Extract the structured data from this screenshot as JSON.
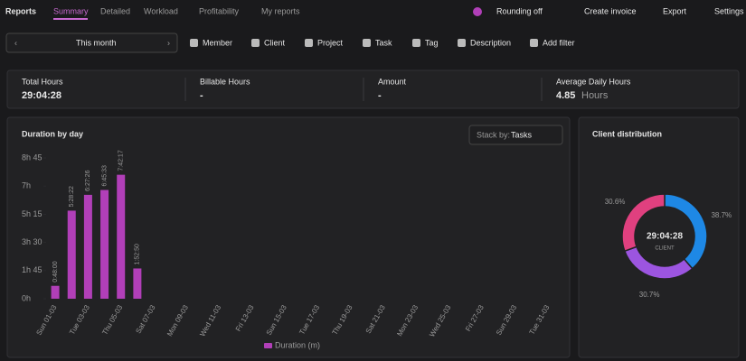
{
  "header": {
    "title": "Reports",
    "tabs": [
      "Summary",
      "Detailed",
      "Workload",
      "Profitability",
      "My reports"
    ],
    "actions": [
      "Rounding off",
      "Create invoice",
      "Export",
      "Settings"
    ]
  },
  "filters": {
    "range": "This month",
    "items": [
      "Member",
      "Client",
      "Project",
      "Task",
      "Tag",
      "Description",
      "Add filter"
    ]
  },
  "stats": [
    {
      "label": "Total Hours",
      "value": "29:04:28"
    },
    {
      "label": "Billable Hours",
      "value": "-"
    },
    {
      "label": "Amount",
      "value": "-"
    },
    {
      "label": "Average Daily Hours",
      "value": 4.85,
      "unit": "Hours"
    }
  ],
  "chart_data": [
    {
      "type": "bar",
      "title": "Duration by day",
      "stack_by_label": "Stack by:",
      "stack_by_value": "Tasks",
      "categories": [
        "Sun 01-03",
        null,
        "Tue 03-03",
        null,
        "Thu 05-03",
        null,
        "Sat 07-03",
        null,
        "Mon 09-03",
        null,
        "Wed 11-03",
        null,
        "Fri 13-03",
        null,
        "Sun 15-03",
        null,
        "Tue 17-03",
        null,
        "Thu 19-03",
        null,
        "Sat 21-03",
        null,
        "Mon 23-03",
        null,
        "Wed 25-03",
        null,
        "Fri 27-03",
        null,
        "Sun 29-03",
        null,
        "Tue 31-03"
      ],
      "series": [
        {
          "name": "Duration (m)",
          "color": "#b13fb8",
          "values": [
            0.8,
            5.473,
            6.457,
            6.759,
            7.705,
            1.881,
            null,
            null,
            null,
            null,
            null,
            null,
            null,
            null,
            null,
            null,
            null,
            null,
            null,
            null,
            null,
            null,
            null,
            null,
            null,
            null,
            null,
            null,
            null,
            null,
            null
          ],
          "value_labels": [
            "0:48:00",
            "5:28:22",
            "6:27:26",
            "6:45:33",
            "7:42:17",
            "1:52:50",
            null,
            null,
            null,
            null,
            null,
            null,
            null,
            null,
            null,
            null,
            null,
            null,
            null,
            null,
            null,
            null,
            null,
            null,
            null,
            null,
            null,
            null,
            null,
            null,
            null
          ]
        }
      ],
      "ylim": [
        0,
        8.75
      ],
      "yticks": [
        {
          "value": 0,
          "label": "0h"
        },
        {
          "value": 1.75,
          "label": "1h 45"
        },
        {
          "value": 3.5,
          "label": "3h 30"
        },
        {
          "value": 5.25,
          "label": "5h 15"
        },
        {
          "value": 7,
          "label": "7h"
        },
        {
          "value": 8.75,
          "label": "8h 45"
        }
      ]
    },
    {
      "type": "pie",
      "title": "Client distribution",
      "center_text": "29:04:28",
      "center_label": "CLIENT",
      "values": [
        38.7,
        30.7,
        30.6
      ],
      "value_labels": [
        "38.7%",
        "30.7%",
        "30.6%"
      ],
      "colors": [
        "#1e88e5",
        "#9c55e0",
        "#e0407f"
      ]
    }
  ]
}
